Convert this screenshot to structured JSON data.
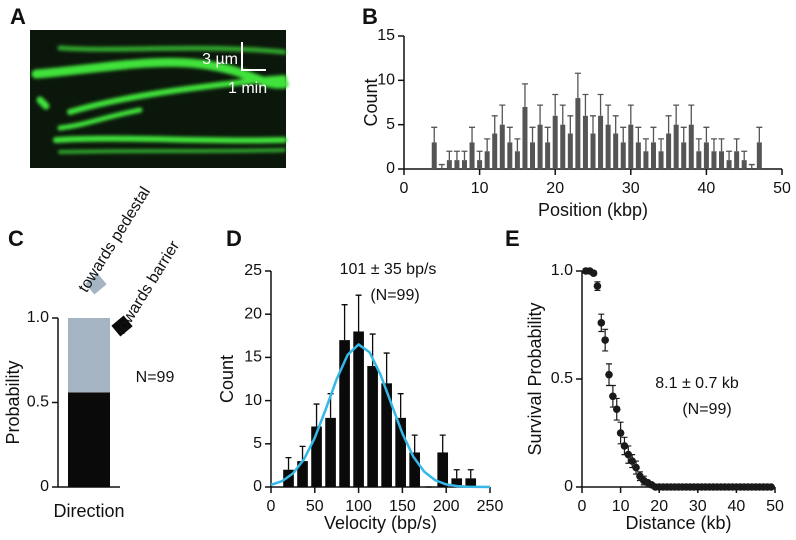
{
  "panel_labels": [
    "A",
    "B",
    "C",
    "D",
    "E"
  ],
  "image": {
    "scale_length": "3 µm",
    "scale_time": "1 min"
  },
  "chart_data": [
    {
      "type": "bar",
      "xlabel": "Position (kbp)",
      "ylabel": "Count",
      "color": "#555555",
      "x": [
        4,
        5,
        6,
        7,
        8,
        9,
        10,
        11,
        12,
        13,
        14,
        15,
        16,
        17,
        18,
        19,
        20,
        21,
        22,
        23,
        24,
        25,
        26,
        27,
        28,
        29,
        30,
        31,
        32,
        33,
        34,
        35,
        36,
        37,
        38,
        39,
        40,
        41,
        42,
        43,
        44,
        45,
        46,
        47
      ],
      "values": [
        3,
        0,
        1,
        1,
        1,
        3,
        1,
        2,
        4,
        5,
        3,
        2,
        7,
        3,
        5,
        3,
        6,
        5,
        4,
        8,
        6,
        4,
        6,
        5,
        4,
        3,
        5,
        3,
        2,
        3,
        2,
        4,
        5,
        3,
        5,
        2,
        3,
        2,
        2,
        1,
        2,
        1,
        0,
        3
      ],
      "errors": [
        1.7,
        0.5,
        1,
        1,
        1,
        1.7,
        1,
        1.4,
        2,
        2.2,
        1.7,
        1.4,
        2.6,
        1.7,
        2.2,
        1.7,
        2.4,
        2.2,
        2,
        2.8,
        2.4,
        2,
        2.4,
        2.2,
        2,
        1.7,
        2.2,
        1.7,
        1.4,
        1.7,
        1.4,
        2,
        2.2,
        1.7,
        2.2,
        1.4,
        1.7,
        1.4,
        1.4,
        1,
        1.4,
        1,
        0.5,
        1.7
      ],
      "xlim": [
        0,
        50
      ],
      "xticks": [
        0,
        10,
        20,
        30,
        40,
        50
      ],
      "ylim": [
        0,
        15
      ],
      "yticks": [
        0,
        5,
        10,
        15
      ]
    },
    {
      "type": "stacked_bar",
      "xlabel": "Direction",
      "ylabel": "Probability",
      "categories": [
        null
      ],
      "series": [
        {
          "name": "towards barrier",
          "color": "#0a0a0a",
          "values": [
            0.56
          ]
        },
        {
          "name": "towards pedestal",
          "color": "#a4b4c2",
          "values": [
            0.44
          ]
        }
      ],
      "ylim": [
        0,
        1
      ],
      "yticks": [
        0,
        0.5,
        {
          "value": 1,
          "label": "1.0"
        }
      ],
      "annotations": [
        "N=99"
      ]
    },
    {
      "type": "histogram",
      "xlabel": "Velocity (bp/s)",
      "ylabel": "Count",
      "color": "#0a0a0a",
      "bins": [
        12,
        28,
        44,
        60,
        76,
        92,
        108,
        124,
        140,
        156,
        172,
        188,
        204,
        220,
        236
      ],
      "values": [
        2,
        3,
        7,
        8,
        17,
        18,
        14,
        12,
        8,
        4,
        0,
        4,
        1,
        1
      ],
      "errors": [
        1.4,
        1.7,
        2.6,
        2.8,
        4.1,
        4.2,
        3.7,
        3.5,
        2.8,
        2,
        0,
        2,
        1,
        1
      ],
      "fit": {
        "color": "#35b8e8",
        "x": [
          0,
          12.5,
          25,
          37.5,
          50,
          62.5,
          75,
          87.5,
          100,
          112.5,
          125,
          137.5,
          150,
          162.5,
          175,
          187.5,
          200,
          212.5,
          225,
          237.5,
          250
        ],
        "values": [
          0.26,
          0.67,
          1.56,
          3.18,
          5.7,
          9.0,
          12.5,
          15.3,
          16.5,
          15.6,
          13.0,
          9.6,
          6.2,
          3.5,
          1.77,
          0.78,
          0.3,
          0.1,
          0.03,
          0.01,
          0
        ]
      },
      "xlim": [
        0,
        250
      ],
      "xticks": [
        0,
        50,
        100,
        150,
        200,
        250
      ],
      "ylim": [
        0,
        25
      ],
      "yticks": [
        0,
        5,
        10,
        15,
        20,
        25
      ],
      "annotations": [
        "101 ± 35 bp/s",
        "(N=99)"
      ]
    },
    {
      "type": "scatter",
      "xlabel": "Distance (kb)",
      "ylabel": "Survival Probability",
      "color": "#1a1a1a",
      "x": [
        1,
        2,
        3,
        4,
        5,
        6,
        7,
        8,
        9,
        10,
        11,
        12,
        13,
        14,
        15,
        16,
        17,
        18,
        19,
        20,
        21,
        22,
        23,
        24,
        25,
        26,
        27,
        28,
        29,
        30,
        31,
        32,
        33,
        34,
        35,
        36,
        37,
        38,
        39,
        40,
        41,
        42,
        43,
        44,
        45,
        46,
        47,
        48,
        49
      ],
      "values": [
        1,
        1,
        0.99,
        0.93,
        0.76,
        0.68,
        0.52,
        0.42,
        0.36,
        0.25,
        0.19,
        0.15,
        0.12,
        0.09,
        0.05,
        0.03,
        0.02,
        0.01,
        0,
        0,
        0,
        0,
        0,
        0,
        0,
        0,
        0,
        0,
        0,
        0,
        0,
        0,
        0,
        0,
        0,
        0,
        0,
        0,
        0,
        0,
        0,
        0,
        0,
        0,
        0,
        0,
        0,
        0,
        0
      ],
      "errors": [
        0.01,
        0.01,
        0.01,
        0.02,
        0.04,
        0.05,
        0.05,
        0.05,
        0.05,
        0.05,
        0.04,
        0.04,
        0.03,
        0.03,
        0.02,
        0.02,
        0.01,
        0.01,
        0,
        0,
        0,
        0,
        0,
        0,
        0,
        0,
        0,
        0,
        0,
        0,
        0,
        0,
        0,
        0,
        0,
        0,
        0,
        0,
        0,
        0,
        0,
        0,
        0,
        0,
        0,
        0,
        0,
        0,
        0
      ],
      "xlim": [
        0,
        50
      ],
      "xticks": [
        0,
        10,
        20,
        30,
        40,
        50
      ],
      "ylim": [
        0,
        1
      ],
      "yticks": [
        0,
        0.5,
        {
          "value": 1,
          "label": "1.0"
        }
      ],
      "annotations": [
        "8.1 ± 0.7 kb",
        "(N=99)"
      ]
    }
  ]
}
